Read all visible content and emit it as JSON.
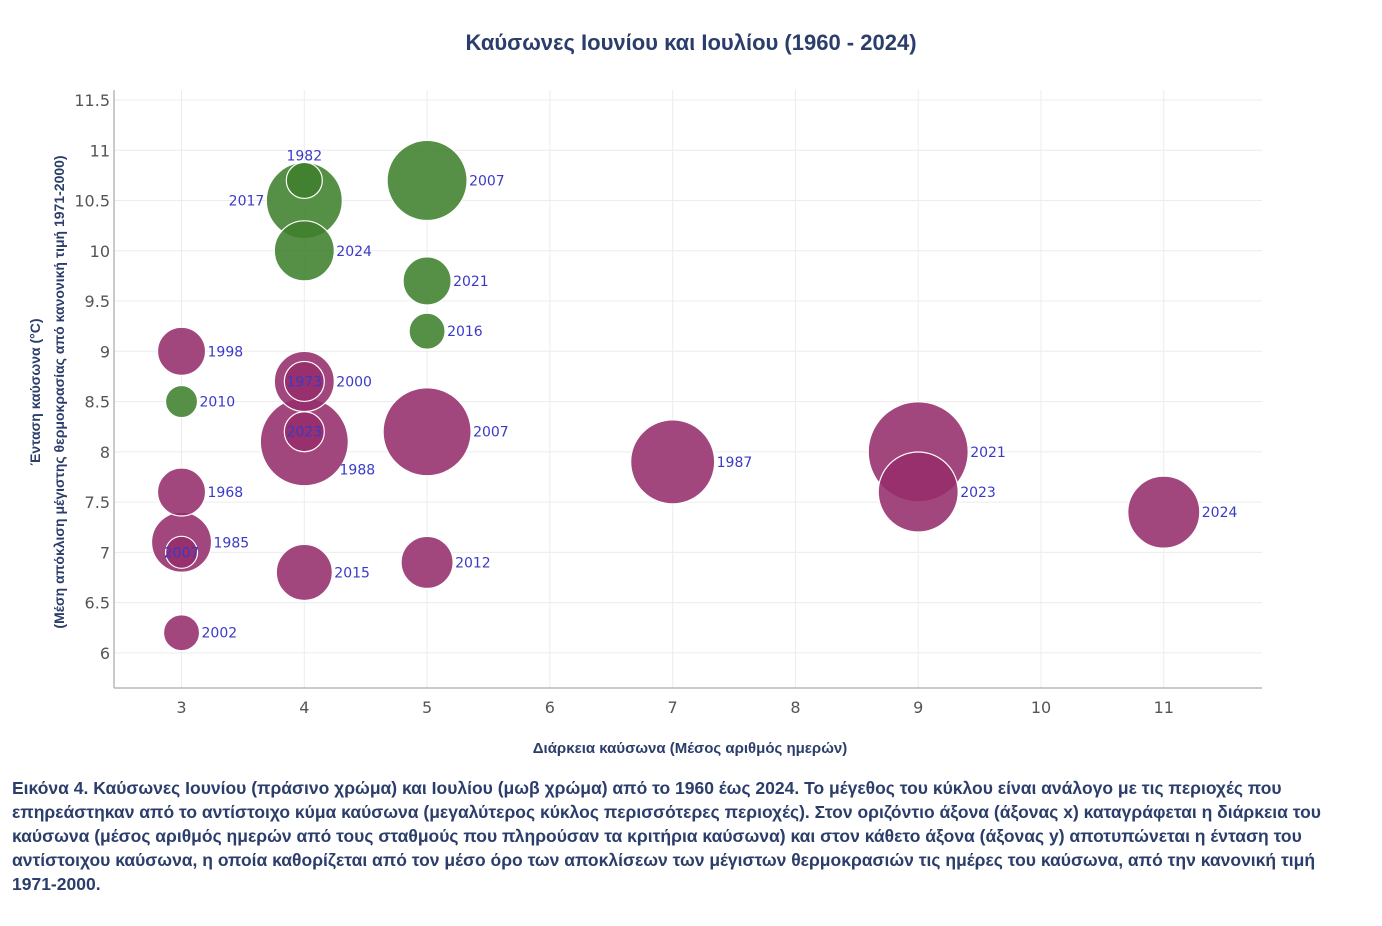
{
  "chart_data": {
    "type": "scatter",
    "title": "Καύσωνες Ιουνίου και Ιουλίου (1960 - 2024)",
    "xlabel": "Διάρκεια καύσωνα (Μέσος αριθμός ημερών)",
    "ylabel_line1": "Ένταση καύσωνα (°C)",
    "ylabel_line2": "(Μέση απόκλιση μέγιστης θερμοκρασίας από κανονική τιμή 1971-2000)",
    "xlim": [
      2.45,
      11.8
    ],
    "ylim": [
      5.65,
      11.6
    ],
    "x_ticks": [
      3,
      4,
      5,
      6,
      7,
      8,
      9,
      10,
      11
    ],
    "y_ticks": [
      6,
      6.5,
      7,
      7.5,
      8,
      8.5,
      9,
      9.5,
      10,
      10.5,
      11,
      11.5
    ],
    "y_tick_labels": [
      "6",
      "6.5",
      "7",
      "7.5",
      "8",
      "8.5",
      "9",
      "9.5",
      "10",
      "10.5",
      "11",
      "11.5"
    ],
    "grid": true,
    "size_meaning": "relative area affected",
    "series": [
      {
        "name": "Ιούνιος",
        "color": "#3f7f2c",
        "points": [
          {
            "x": 4,
            "y": 10.7,
            "size": 0.45,
            "label": "1982",
            "label_pos": "top"
          },
          {
            "x": 4,
            "y": 10.5,
            "size": 0.95,
            "label": "2017",
            "label_pos": "left"
          },
          {
            "x": 4,
            "y": 10.0,
            "size": 0.75,
            "label": "2024",
            "label_pos": "right"
          },
          {
            "x": 5,
            "y": 10.7,
            "size": 1.0,
            "label": "2007",
            "label_pos": "right"
          },
          {
            "x": 5,
            "y": 9.7,
            "size": 0.6,
            "label": "2021",
            "label_pos": "right"
          },
          {
            "x": 5,
            "y": 9.2,
            "size": 0.45,
            "label": "2016",
            "label_pos": "right"
          },
          {
            "x": 3,
            "y": 8.5,
            "size": 0.4,
            "label": "2010",
            "label_pos": "right"
          }
        ]
      },
      {
        "name": "Ιούλιος",
        "color": "#952d6b",
        "points": [
          {
            "x": 3,
            "y": 9.0,
            "size": 0.6,
            "label": "1998",
            "label_pos": "right"
          },
          {
            "x": 4,
            "y": 8.7,
            "size": 0.75,
            "label": "2000",
            "label_pos": "right"
          },
          {
            "x": 4,
            "y": 8.7,
            "size": 0.5,
            "label": "1973",
            "label_pos": "center"
          },
          {
            "x": 5,
            "y": 8.2,
            "size": 1.1,
            "label": "2007",
            "label_pos": "right"
          },
          {
            "x": 4,
            "y": 8.1,
            "size": 1.1,
            "label": "1988",
            "label_pos": "below-right"
          },
          {
            "x": 4,
            "y": 8.2,
            "size": 0.5,
            "label": "2023",
            "label_pos": "center"
          },
          {
            "x": 7,
            "y": 7.9,
            "size": 1.05,
            "label": "1987",
            "label_pos": "right"
          },
          {
            "x": 9,
            "y": 8.0,
            "size": 1.25,
            "label": "2021",
            "label_pos": "right"
          },
          {
            "x": 9,
            "y": 7.6,
            "size": 1.0,
            "label": "2023",
            "label_pos": "right"
          },
          {
            "x": 11,
            "y": 7.4,
            "size": 0.9,
            "label": "2024",
            "label_pos": "right"
          },
          {
            "x": 3,
            "y": 7.6,
            "size": 0.6,
            "label": "1968",
            "label_pos": "right"
          },
          {
            "x": 3,
            "y": 7.1,
            "size": 0.75,
            "label": "1985",
            "label_pos": "right"
          },
          {
            "x": 3,
            "y": 7.0,
            "size": 0.4,
            "label": "2007",
            "label_pos": "center"
          },
          {
            "x": 4,
            "y": 6.8,
            "size": 0.7,
            "label": "2015",
            "label_pos": "right"
          },
          {
            "x": 5,
            "y": 6.9,
            "size": 0.65,
            "label": "2012",
            "label_pos": "right"
          },
          {
            "x": 3,
            "y": 6.2,
            "size": 0.45,
            "label": "2002",
            "label_pos": "right"
          }
        ]
      }
    ]
  },
  "caption": "Εικόνα 4. Καύσωνες Ιουνίου (πράσινο χρώμα) και Ιουλίου (μωβ χρώμα) από το 1960 έως 2024. Το μέγεθος του κύκλου είναι ανάλογο με τις περιοχές που επηρεάστηκαν από το αντίστοιχο κύμα καύσωνα (μεγαλύτερος κύκλος περισσότερες περιοχές). Στον οριζόντιο άξονα (άξονας x) καταγράφεται η διάρκεια του καύσωνα (μέσος αριθμός ημερών από τους σταθμούς που πληρούσαν τα κριτήρια καύσωνα) και στον κάθετο άξονα (άξονας y) αποτυπώνεται η ένταση του αντίστοιχου καύσωνα, η οποία καθορίζεται από τον μέσο όρο των αποκλίσεων των μέγιστων θερμοκρασιών τις ημέρες του καύσωνα, από την κανονική τιμή 1971-2000."
}
